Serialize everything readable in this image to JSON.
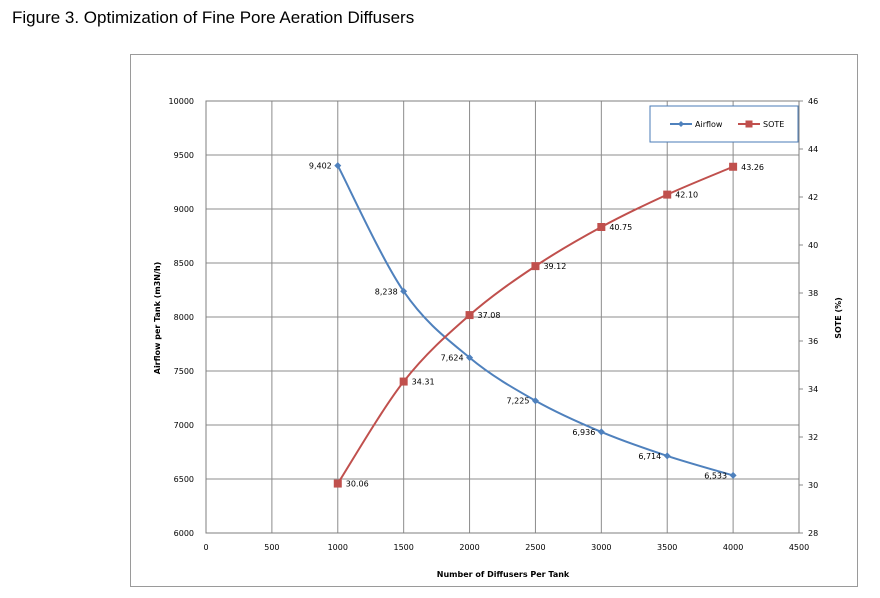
{
  "figure_title": "Figure 3.  Optimization of Fine Pore Aeration Diffusers",
  "colors": {
    "airflow": "#4f81bd",
    "sote": "#c0504d",
    "grid": "#8c8c8c"
  },
  "chart_data": {
    "type": "line",
    "title": "",
    "xlabel": "Number of Diffusers Per Tank",
    "ylabel": "Airflow per Tank (m3N/h)",
    "y2label": "SOTE (%)",
    "xlim": [
      0,
      4500
    ],
    "ylim": [
      6000,
      10000
    ],
    "y2lim": [
      28,
      46
    ],
    "xticks": [
      0,
      500,
      1000,
      1500,
      2000,
      2500,
      3000,
      3500,
      4000,
      4500
    ],
    "yticks": [
      6000,
      6500,
      7000,
      7500,
      8000,
      8500,
      9000,
      9500,
      10000
    ],
    "y2ticks": [
      28,
      30,
      32,
      34,
      36,
      38,
      40,
      42,
      44,
      46
    ],
    "grid": true,
    "legend": {
      "placement": "top-right",
      "entries": [
        "Airflow",
        "SOTE"
      ]
    },
    "x": [
      1000,
      1500,
      2000,
      2500,
      3000,
      3500,
      4000
    ],
    "series": [
      {
        "name": "Airflow",
        "axis": "left",
        "marker": "diamond",
        "values": [
          9402,
          8238,
          7624,
          7225,
          6936,
          6714,
          6533
        ],
        "labels": [
          "9,402",
          "8,238",
          "7,624",
          "7,225",
          "6,936",
          "6,714",
          "6,533"
        ]
      },
      {
        "name": "SOTE",
        "axis": "right",
        "marker": "square",
        "values": [
          30.06,
          34.31,
          37.08,
          39.12,
          40.75,
          42.1,
          43.26
        ],
        "labels": [
          "30.06",
          "34.31",
          "37.08",
          "39.12",
          "40.75",
          "42.10",
          "43.26"
        ]
      }
    ]
  }
}
